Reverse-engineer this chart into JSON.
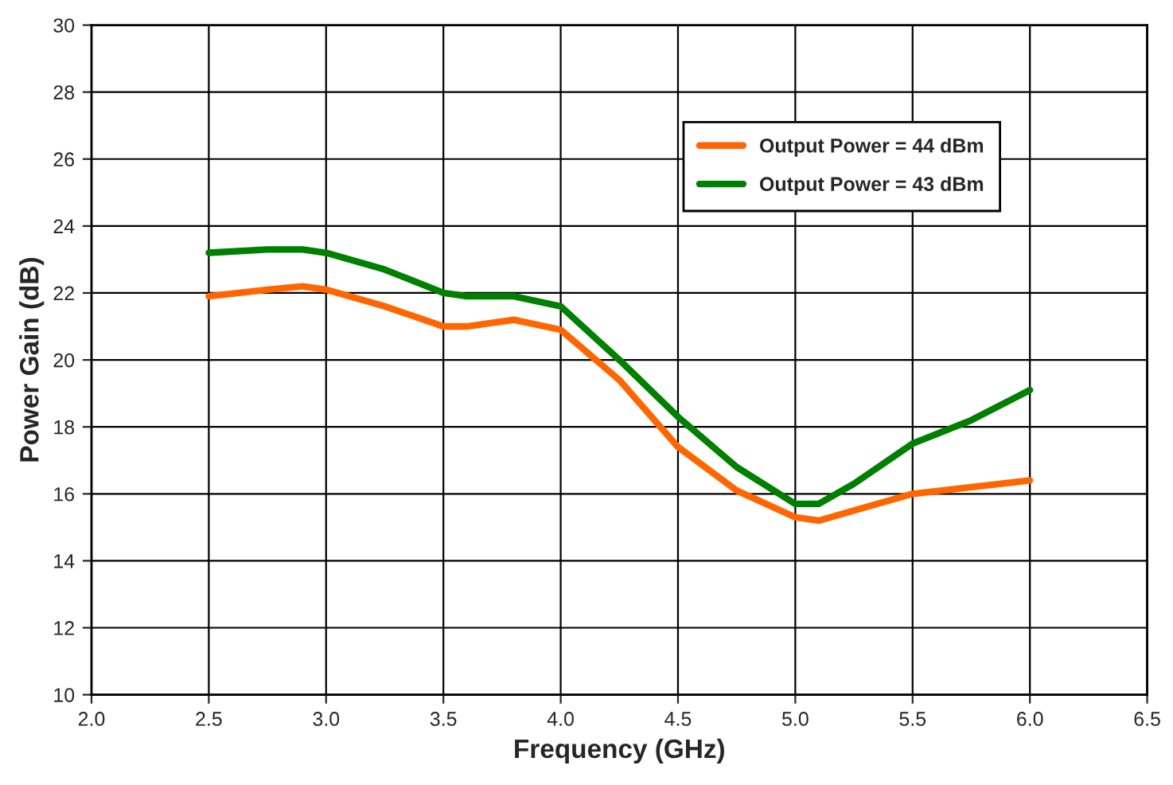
{
  "chart_data": {
    "type": "line",
    "xlabel": "Frequency (GHz)",
    "ylabel": "Power Gain (dB)",
    "xlim": [
      2.0,
      6.5
    ],
    "xticks": [
      {
        "value": 2.0,
        "label": "2.0"
      },
      {
        "value": 2.5,
        "label": "2.5"
      },
      {
        "value": 3.0,
        "label": "3.0"
      },
      {
        "value": 3.5,
        "label": "3.5"
      },
      {
        "value": 4.0,
        "label": "4.0"
      },
      {
        "value": 4.5,
        "label": "4.5"
      },
      {
        "value": 5.0,
        "label": "5.0"
      },
      {
        "value": 5.5,
        "label": "5.5"
      },
      {
        "value": 6.0,
        "label": "6.0"
      },
      {
        "value": 6.5,
        "label": "6.5"
      }
    ],
    "ylim": [
      10,
      30
    ],
    "yticks": [
      10,
      12,
      14,
      16,
      18,
      20,
      22,
      24,
      26,
      28,
      30
    ],
    "x": [
      2.5,
      2.75,
      2.9,
      3.0,
      3.25,
      3.5,
      3.6,
      3.8,
      4.0,
      4.25,
      4.5,
      4.75,
      5.0,
      5.1,
      5.25,
      5.5,
      5.75,
      6.0
    ],
    "series": [
      {
        "name": "Output Power = 44 dBm",
        "color": "#ff6600",
        "values": [
          21.9,
          22.1,
          22.2,
          22.1,
          21.6,
          21.0,
          21.0,
          21.2,
          20.9,
          19.4,
          17.4,
          16.1,
          15.3,
          15.2,
          15.5,
          16.0,
          16.2,
          16.4
        ]
      },
      {
        "name": "Output Power = 43 dBm",
        "color": "#008000",
        "values": [
          23.2,
          23.3,
          23.3,
          23.2,
          22.7,
          22.0,
          21.9,
          21.9,
          21.6,
          20.0,
          18.3,
          16.8,
          15.7,
          15.7,
          16.3,
          17.5,
          18.2,
          19.1
        ]
      }
    ],
    "grid": true,
    "legend": "top right",
    "marker": "none",
    "line_style": "solid"
  }
}
